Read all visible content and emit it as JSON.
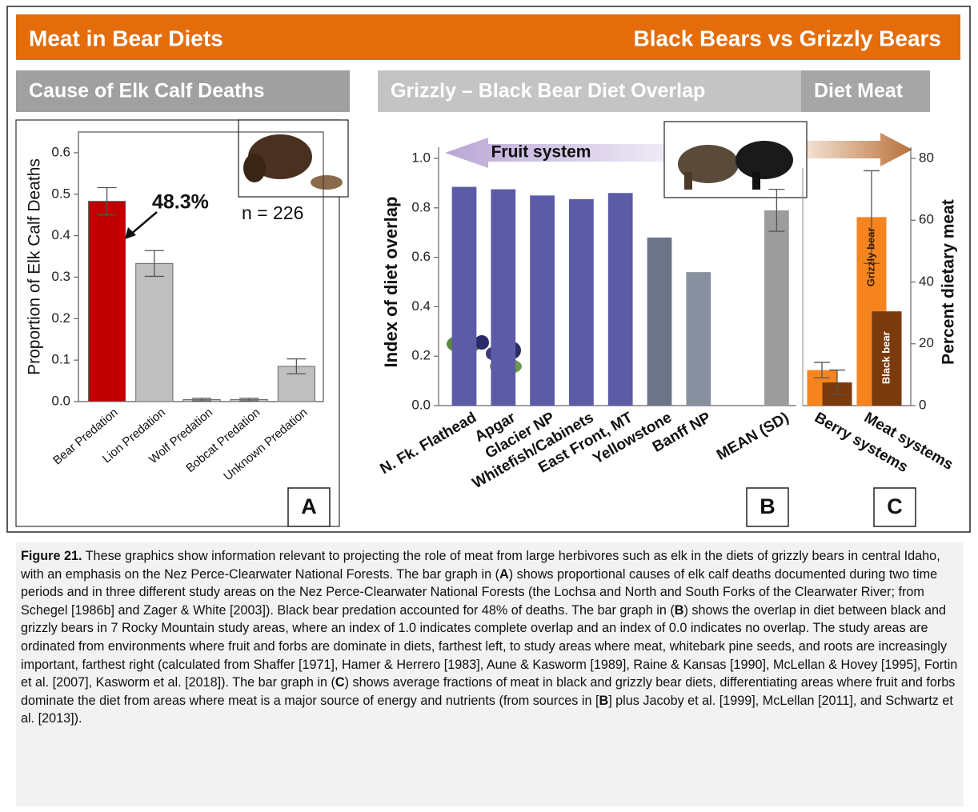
{
  "header": {
    "left": "Meat in Bear Diets",
    "right": "Black Bears vs Grizzly Bears"
  },
  "chart_data": [
    {
      "type": "bar",
      "title": "Cause of Elk Calf Deaths",
      "y_label": "Proportion of Elk Calf Deaths",
      "categories": [
        "Bear Predation",
        "Lion Predation",
        "Wolf Predation",
        "Bobcat Predation",
        "Unknown Predation"
      ],
      "values": [
        0.483,
        0.333,
        0.005,
        0.005,
        0.085
      ],
      "errors": [
        0.033,
        0.031,
        0.003,
        0.003,
        0.018
      ],
      "colors": [
        "#c00000",
        "#bfbfbf",
        "#bfbfbf",
        "#bfbfbf",
        "#bfbfbf"
      ],
      "ylim": [
        0,
        0.65
      ],
      "yticks": [
        {
          "value": 0,
          "label": "0.0"
        },
        0.1,
        0.2,
        0.3,
        0.4,
        0.5,
        0.6
      ],
      "annotations": [
        "48.3%",
        "n = 226"
      ],
      "panel": "A"
    },
    {
      "type": "bar",
      "title": "Grizzly – Black Bear Diet Overlap",
      "y_label": "Index of diet overlap",
      "categories": [
        "N. Fk. Flathead",
        "Apgar",
        "Glacier NP",
        "Whitefish/Cabinets",
        "East Front, MT",
        "Yellowstone",
        "Banff NP",
        null,
        "MEAN (SD)"
      ],
      "values": [
        0.885,
        0.875,
        0.85,
        0.835,
        0.86,
        0.68,
        0.54,
        null,
        0.79
      ],
      "errors": [
        null,
        null,
        null,
        null,
        null,
        null,
        null,
        null,
        0.085
      ],
      "colors": [
        "#5b5ba8",
        "#5b5ba8",
        "#5b5ba8",
        "#5b5ba8",
        "#5b5ba8",
        "#6b7587",
        "#8890a0",
        null,
        "#9c9c9c"
      ],
      "ylim": [
        0,
        1.0
      ],
      "yticks": [
        {
          "value": 0,
          "label": "0.0"
        },
        0.2,
        0.4,
        0.6,
        0.8,
        {
          "value": 1,
          "label": "1.0"
        }
      ],
      "annotations": [
        "Fruit system"
      ],
      "panel": "B"
    },
    {
      "type": "bar",
      "title": "Diet Meat",
      "y_label": "Percent dietary meat",
      "categories": [
        "Berry systems",
        "Meat systems"
      ],
      "series": [
        {
          "name": "Grizzly bear",
          "color": "#f5841f",
          "values": [
            11.5,
            61
          ],
          "errors": [
            2.5,
            15
          ]
        },
        {
          "name": "Black bear",
          "color": "#7a3a0c",
          "values": [
            7.5,
            30.5
          ],
          "errors": [
            4,
            null
          ]
        }
      ],
      "ylim": [
        0,
        80
      ],
      "yticks": [
        0,
        20,
        40,
        60,
        80
      ],
      "y_side": "right",
      "panel": "C"
    }
  ],
  "caption": [
    {
      "text": "Figure 21.",
      "bold": true
    },
    {
      "text": " These graphics show information relevant to projecting the role of meat from large herbivores such as elk in the diets of grizzly bears in central Idaho, with an emphasis on the Nez Perce-Clearwater National Forests. The bar graph in (",
      "bold": false
    },
    {
      "text": "A",
      "bold": true
    },
    {
      "text": ") shows proportional causes of elk calf deaths documented during two time periods and in three different study areas on the Nez Perce-Clearwater National Forests (the Lochsa and North and South Forks of the Clearwater River; from Schegel [1986b] and Zager & White [2003]). Black bear predation accounted for 48% of deaths. The bar graph in (",
      "bold": false
    },
    {
      "text": "B",
      "bold": true
    },
    {
      "text": ") shows the overlap in diet between black and grizzly bears in 7 Rocky Mountain study areas, where an index of 1.0 indicates complete overlap and an index of 0.0 indicates no overlap. The study areas are ordinated from environments where fruit and forbs are dominate in diets, farthest left, to study areas where meat, whitebark pine seeds, and roots are increasingly important, farthest right (calculated from  Shaffer [1971], Hamer & Herrero [1983], Aune & Kasworm [1989], Raine & Kansas [1990], McLellan & Hovey [1995], Fortin et al. [2007], Kasworm et al. [2018]). The bar graph in (",
      "bold": false
    },
    {
      "text": "C",
      "bold": true
    },
    {
      "text": ") shows average fractions of meat in black and grizzly bear diets, differentiating areas where fruit and forbs dominate the diet from areas where meat is a major source of energy and nutrients (from sources in [",
      "bold": false
    },
    {
      "text": "B",
      "bold": true
    },
    {
      "text": "] plus Jacoby et al. [1999], McLellan [2011], and Schwartz et al. [2013]).",
      "bold": false
    }
  ]
}
